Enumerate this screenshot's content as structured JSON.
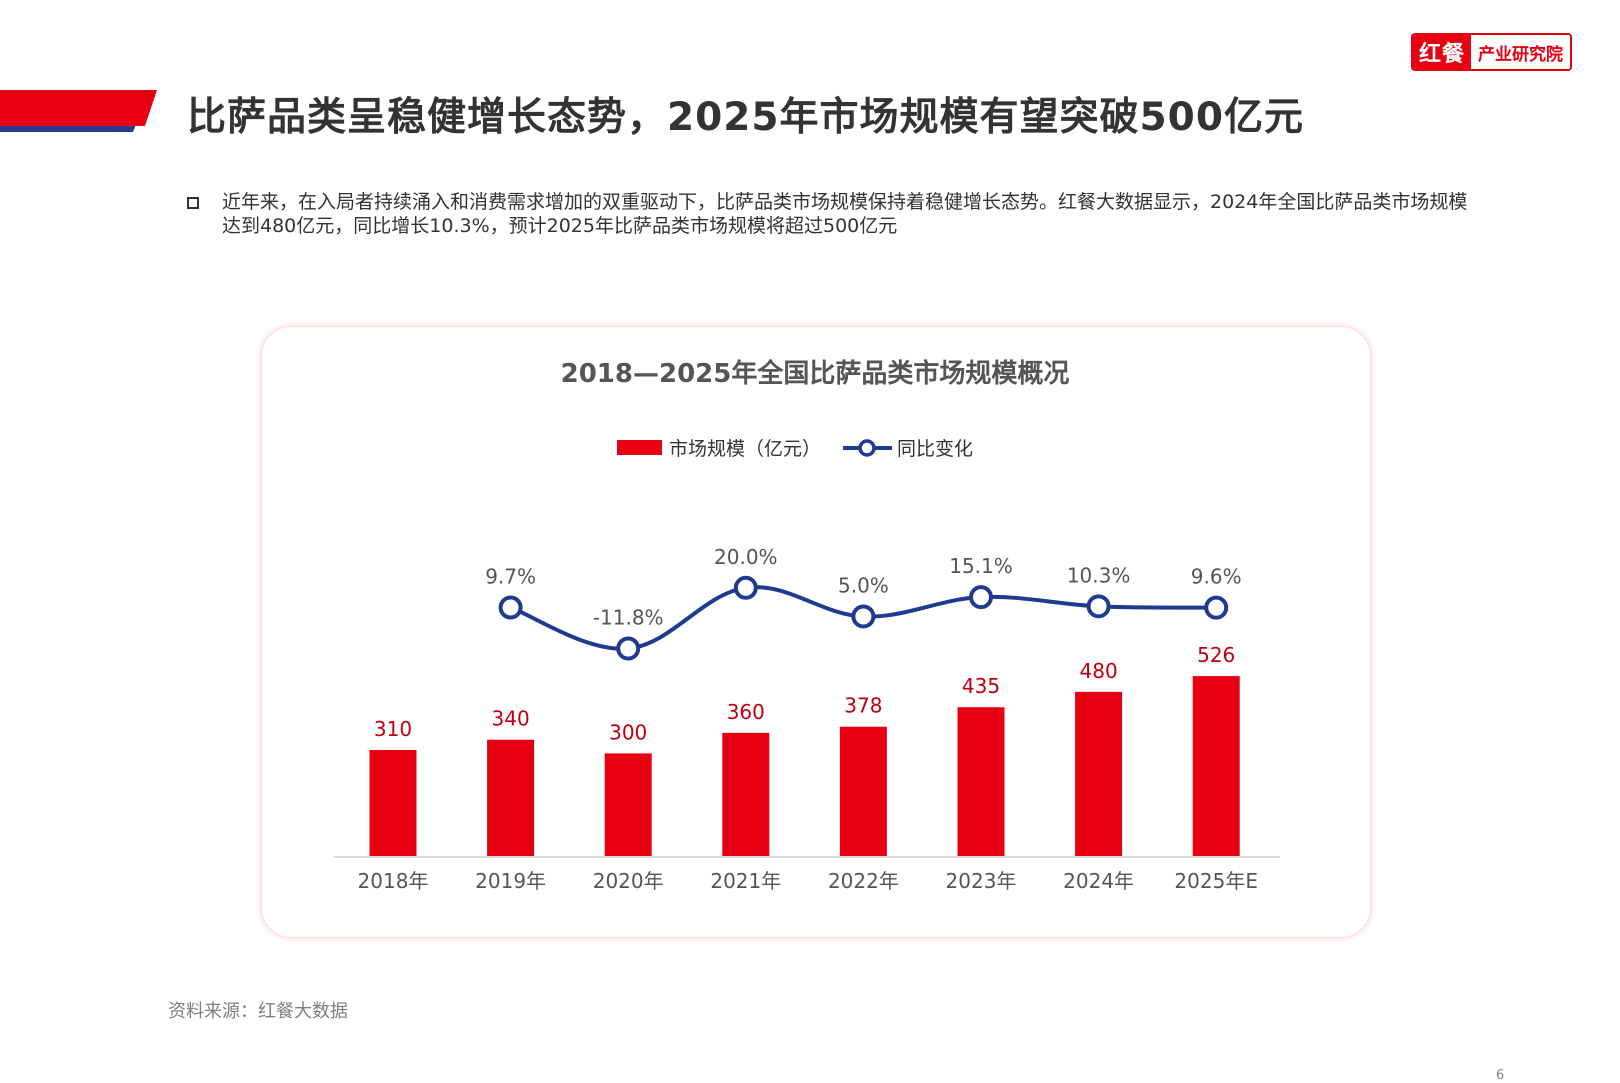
{
  "logo": {
    "brand": "红餐",
    "sub": "产业研究院"
  },
  "title": "比萨品类呈稳健增长态势，2025年市场规模有望突破500亿元",
  "intro": "近年来，在入局者持续涌入和消费需求增加的双重驱动下，比萨品类市场规模保持着稳健增长态势。红餐大数据显示，2024年全国比萨品类市场规模达到480亿元，同比增长10.3%，预计2025年比萨品类市场规模将超过500亿元",
  "source": "资料来源：红餐大数据",
  "page_number": "6",
  "colors": {
    "bar": "#e60012",
    "line": "#1f3b8f",
    "bar_label": "#c00010",
    "title_red": "#e60012",
    "title_blue": "#2b3990"
  },
  "chart_data": {
    "type": "bar",
    "title": "2018—2025年全国比萨品类市场规模概况",
    "categories": [
      "2018年",
      "2019年",
      "2020年",
      "2021年",
      "2022年",
      "2023年",
      "2024年",
      "2025年E"
    ],
    "series": [
      {
        "name": "市场规模（亿元）",
        "type": "bar",
        "values": [
          310,
          340,
          300,
          360,
          378,
          435,
          480,
          526
        ],
        "labels": [
          "310",
          "340",
          "300",
          "360",
          "378",
          "435",
          "480",
          "526"
        ]
      },
      {
        "name": "同比变化",
        "type": "line",
        "values": [
          null,
          9.7,
          -11.8,
          20.0,
          5.0,
          15.1,
          10.3,
          9.6
        ],
        "labels": [
          "",
          "9.7%",
          "-11.8%",
          "20.0%",
          "5.0%",
          "15.1%",
          "10.3%",
          "9.6%"
        ]
      }
    ],
    "legend_position": "top-center",
    "grid": false
  }
}
